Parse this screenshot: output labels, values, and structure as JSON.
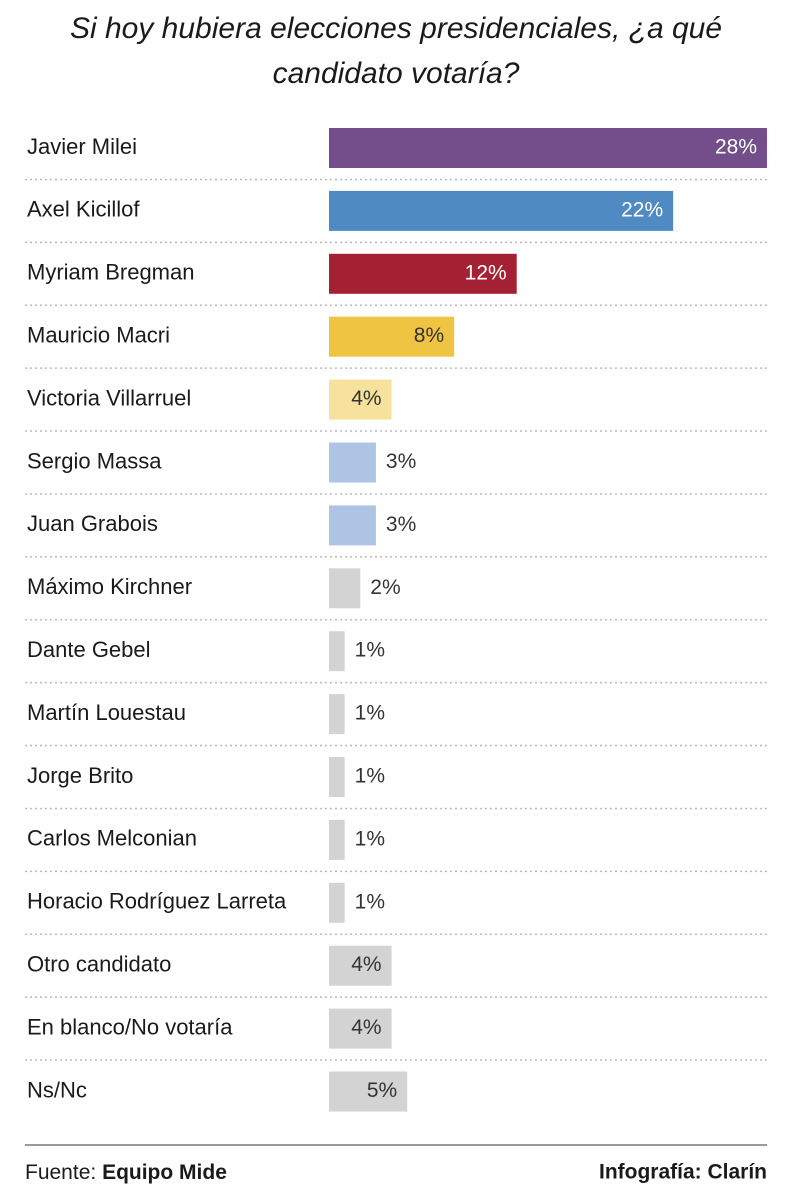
{
  "chart_data": {
    "type": "bar",
    "orientation": "horizontal",
    "title": [
      "Si hoy hubiera elecciones presidenciales, ¿a qué",
      "candidato votaría?"
    ],
    "categories": [
      "Javier Milei",
      "Axel Kicillof",
      "Myriam Bregman",
      "Mauricio Macri",
      "Victoria Villarruel",
      "Sergio Massa",
      "Juan Grabois",
      "Máximo Kirchner",
      "Dante Gebel",
      "Martín Louestau",
      "Jorge Brito",
      "Carlos Melconian",
      "Horacio Rodríguez Larreta",
      "Otro candidato",
      "En blanco/No votaría",
      "Ns/Nc"
    ],
    "values": [
      28,
      22,
      12,
      8,
      4,
      3,
      3,
      2,
      1,
      1,
      1,
      1,
      1,
      4,
      4,
      5
    ],
    "value_labels": [
      "28%",
      "22%",
      "12%",
      "8%",
      "4%",
      "3%",
      "3%",
      "2%",
      "1%",
      "1%",
      "1%",
      "1%",
      "1%",
      "4%",
      "4%",
      "5%"
    ],
    "colors": [
      "#744e8a",
      "#4f8ac2",
      "#a42134",
      "#efc443",
      "#f6e29c",
      "#aec4e4",
      "#aec4e4",
      "#d3d3d3",
      "#d3d3d3",
      "#d3d3d3",
      "#d3d3d3",
      "#d3d3d3",
      "#d3d3d3",
      "#d3d3d3",
      "#d3d3d3",
      "#d3d3d3"
    ],
    "source_label": "Fuente:",
    "source": "Equipo Mide",
    "credit": "Infografía: Clarín"
  }
}
